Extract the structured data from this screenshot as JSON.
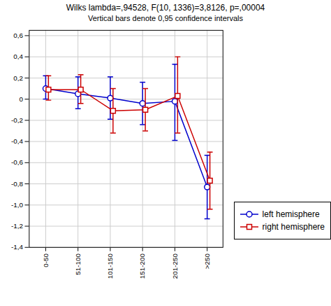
{
  "chart_data": {
    "type": "line",
    "title": "Wilks lambda=,94528, F(10, 1336)=3,8126, p=,00004",
    "subtitle": "Vertical bars denote 0,95 confidence intervals",
    "categories": [
      "0-50",
      "51-100",
      "101-150",
      "151-200",
      "201-250",
      ">250"
    ],
    "series": [
      {
        "name": "left hemisphere",
        "color": "#0000cc",
        "marker": "circle",
        "values": [
          0.1,
          0.05,
          0.01,
          -0.04,
          -0.02,
          -0.83
        ],
        "yerr_lo": [
          0.1,
          0.14,
          0.2,
          0.2,
          0.37,
          0.3
        ],
        "yerr_hi": [
          0.12,
          0.16,
          0.2,
          0.2,
          0.35,
          0.3
        ]
      },
      {
        "name": "right hemisphere",
        "color": "#cc0000",
        "marker": "square",
        "values": [
          0.09,
          0.09,
          -0.11,
          -0.1,
          0.03,
          -0.77
        ],
        "yerr_lo": [
          0.1,
          0.13,
          0.21,
          0.2,
          0.35,
          0.27
        ],
        "yerr_hi": [
          0.13,
          0.14,
          0.21,
          0.2,
          0.37,
          0.27
        ]
      }
    ],
    "ylim": [
      -1.4,
      0.65
    ],
    "yticks": [
      {
        "value": -1.4,
        "label": "-1,4"
      },
      {
        "value": -1.2,
        "label": "-1,2"
      },
      {
        "value": -1.0,
        "label": "-1,0"
      },
      {
        "value": -0.8,
        "label": "-0,8"
      },
      {
        "value": -0.6,
        "label": "-0,6"
      },
      {
        "value": -0.4,
        "label": "-0,4"
      },
      {
        "value": -0.2,
        "label": "-0,2"
      },
      0,
      {
        "value": 0.2,
        "label": "0,2"
      },
      {
        "value": 0.4,
        "label": "0,4"
      },
      {
        "value": 0.6,
        "label": "0,6"
      }
    ],
    "grid": true,
    "legend": "lower right"
  }
}
